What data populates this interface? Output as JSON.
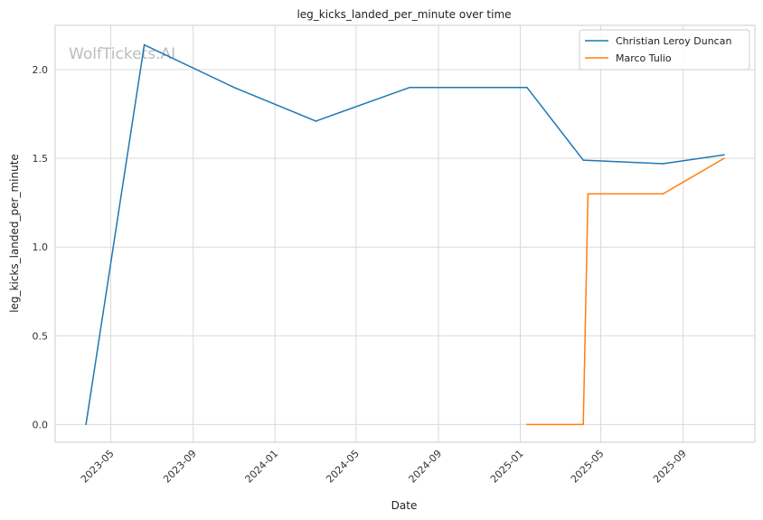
{
  "chart_data": {
    "type": "line",
    "title": "leg_kicks_landed_per_minute over time",
    "xlabel": "Date",
    "ylabel": "leg_kicks_landed_per_minute",
    "watermark": "WolfTickets.AI",
    "x_axis_type": "date",
    "xlim": [
      "2023-02-07",
      "2025-12-17"
    ],
    "ylim": [
      -0.1,
      2.25
    ],
    "x_ticks": [
      "2023-05",
      "2023-09",
      "2024-01",
      "2024-05",
      "2024-09",
      "2025-01",
      "2025-05",
      "2025-09"
    ],
    "y_ticks": [
      "0.0",
      "0.5",
      "1.0",
      "1.5",
      "2.0"
    ],
    "grid": true,
    "legend_position": "top-right",
    "series": [
      {
        "name": "Christian Leroy Duncan",
        "color": "#1f77b4",
        "points": [
          {
            "x": "2023-03-25",
            "y": 0.0
          },
          {
            "x": "2023-06-20",
            "y": 2.14
          },
          {
            "x": "2023-11-01",
            "y": 1.9
          },
          {
            "x": "2024-03-02",
            "y": 1.71
          },
          {
            "x": "2024-07-20",
            "y": 1.9
          },
          {
            "x": "2025-01-11",
            "y": 1.9
          },
          {
            "x": "2025-04-05",
            "y": 1.49
          },
          {
            "x": "2025-08-02",
            "y": 1.47
          },
          {
            "x": "2025-11-01",
            "y": 1.52
          }
        ]
      },
      {
        "name": "Marco Tulio",
        "color": "#ff7f0e",
        "points": [
          {
            "x": "2025-01-11",
            "y": 0.0
          },
          {
            "x": "2025-04-05",
            "y": 0.0
          },
          {
            "x": "2025-04-12",
            "y": 1.3
          },
          {
            "x": "2025-08-02",
            "y": 1.3
          },
          {
            "x": "2025-11-01",
            "y": 1.5
          }
        ]
      }
    ]
  }
}
